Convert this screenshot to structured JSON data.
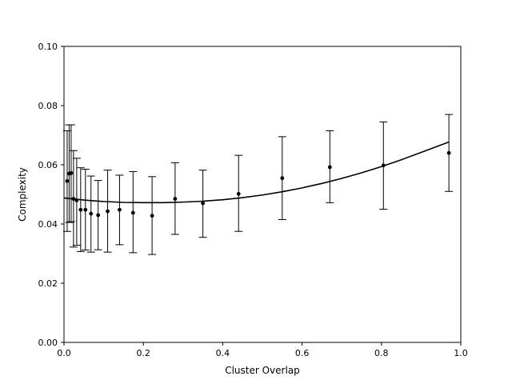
{
  "chart_data": {
    "type": "scatter",
    "title": "",
    "xlabel": "Cluster Overlap",
    "ylabel": "Complexity",
    "xlim": [
      0,
      1
    ],
    "ylim": [
      0,
      0.1
    ],
    "xticks": [
      0,
      0.2,
      0.4,
      0.6,
      0.8,
      1.0
    ],
    "xtick_labels": [
      "0.0",
      "0.2",
      "0.4",
      "0.6",
      "0.8",
      "1.0"
    ],
    "yticks": [
      0,
      0.02,
      0.04,
      0.06,
      0.08,
      0.1
    ],
    "ytick_labels": [
      "0.00",
      "0.02",
      "0.04",
      "0.06",
      "0.08",
      "0.10"
    ],
    "grid": false,
    "legend": "none",
    "color": "#000000",
    "points": {
      "x": [
        0.008,
        0.013,
        0.018,
        0.024,
        0.032,
        0.042,
        0.054,
        0.068,
        0.086,
        0.11,
        0.14,
        0.174,
        0.222,
        0.28,
        0.35,
        0.44,
        0.55,
        0.67,
        0.805,
        0.97
      ],
      "y": [
        0.0545,
        0.057,
        0.0572,
        0.0485,
        0.048,
        0.0448,
        0.0448,
        0.0435,
        0.043,
        0.0443,
        0.0448,
        0.0438,
        0.0428,
        0.0485,
        0.047,
        0.0502,
        0.0555,
        0.0592,
        0.0598,
        0.064
      ],
      "yerr_low": [
        0.0375,
        0.0405,
        0.0408,
        0.0322,
        0.0328,
        0.0307,
        0.0312,
        0.0305,
        0.0313,
        0.0305,
        0.033,
        0.0303,
        0.0297,
        0.0365,
        0.0355,
        0.0375,
        0.0415,
        0.0472,
        0.045,
        0.051
      ],
      "yerr_high": [
        0.0715,
        0.0735,
        0.0735,
        0.0648,
        0.0622,
        0.059,
        0.0585,
        0.0562,
        0.0547,
        0.0582,
        0.0565,
        0.0577,
        0.056,
        0.0607,
        0.0582,
        0.0632,
        0.0695,
        0.0715,
        0.0745,
        0.077
      ]
    },
    "fit_line": {
      "x": [
        0,
        0.05,
        0.1,
        0.15,
        0.2,
        0.25,
        0.3,
        0.35,
        0.4,
        0.45,
        0.5,
        0.55,
        0.6,
        0.65,
        0.7,
        0.75,
        0.8,
        0.85,
        0.9,
        0.97
      ],
      "y": [
        0.0488,
        0.0481,
        0.0476,
        0.0473,
        0.0472,
        0.0472,
        0.0474,
        0.0477,
        0.0482,
        0.0489,
        0.0498,
        0.0509,
        0.0522,
        0.0537,
        0.0554,
        0.0573,
        0.0594,
        0.0617,
        0.0642,
        0.0677
      ]
    }
  }
}
